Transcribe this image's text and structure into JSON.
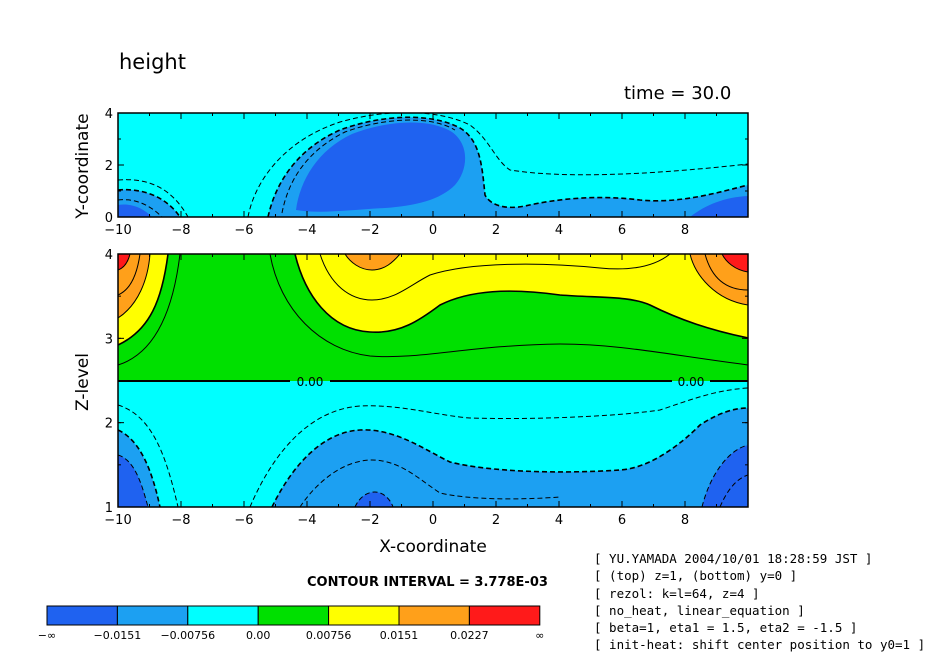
{
  "title": "height",
  "time_label": "time = 30.0",
  "contour_interval_label": "CONTOUR INTERVAL = 3.778E-03",
  "colors": {
    "c0": "#1f62f0",
    "c1": "#1ca0f2",
    "c2": "#00ffff",
    "c3": "#00e000",
    "c4": "#ffff00",
    "c5": "#ffa01a",
    "c6": "#ff1a1a"
  },
  "chart_data": [
    {
      "type": "heatmap",
      "subtype": "filled-contour",
      "title": "height",
      "xlabel": "",
      "ylabel": "Y-coordinate",
      "xlim": [
        -10,
        10
      ],
      "ylim": [
        0,
        4
      ],
      "x_ticks": [
        "-10",
        "-8",
        "-6",
        "-4",
        "-2",
        "0",
        "2",
        "4",
        "6",
        "8"
      ],
      "y_ticks": [
        "0",
        "2",
        "4"
      ],
      "field": "height at z=1",
      "features": [
        {
          "region": "central low",
          "x_range": [
            -5,
            1.3
          ],
          "y_range": [
            0,
            3.7
          ],
          "level_band": "< -0.0151",
          "center": [
            -2,
            1.4
          ]
        },
        {
          "region": "right corner low",
          "x_range": [
            8,
            10
          ],
          "y_range": [
            0,
            0.7
          ],
          "level_band": "< -0.0151"
        },
        {
          "region": "left corner low",
          "x_range": [
            -10,
            -9
          ],
          "y_range": [
            0,
            0.4
          ],
          "level_band": "< -0.0151"
        },
        {
          "region": "wavy ridge",
          "x_range": [
            1.5,
            10
          ],
          "y_range": [
            0,
            0.8
          ],
          "level_band": "-0.0151 to -0.00756"
        }
      ]
    },
    {
      "type": "heatmap",
      "subtype": "filled-contour",
      "title": "",
      "xlabel": "X-coordinate",
      "ylabel": "Z-level",
      "xlim": [
        -10,
        10
      ],
      "ylim": [
        1,
        4
      ],
      "x_ticks": [
        "-10",
        "-8",
        "-6",
        "-4",
        "-2",
        "0",
        "2",
        "4",
        "6",
        "8"
      ],
      "y_ticks": [
        "1",
        "2",
        "3",
        "4"
      ],
      "field": "height at y=0",
      "zero_contour_z": 2.5,
      "zero_contour_labels": [
        "0.00",
        "0.00"
      ],
      "features": [
        {
          "region": "upper left corner high",
          "x_range": [
            -10,
            -8
          ],
          "z_range": [
            3.0,
            4
          ],
          "level_band": "0.0151 to 0.0227"
        },
        {
          "region": "upper right corner high",
          "x_range": [
            7.5,
            10
          ],
          "z_range": [
            3.0,
            4
          ],
          "level_band": "0.0227 and above"
        },
        {
          "region": "upper central high",
          "x_range": [
            -4.5,
            7
          ],
          "z_range": [
            3.1,
            4
          ],
          "level_band": "0.00756 to 0.0151"
        },
        {
          "region": "lower left low",
          "x_range": [
            -10,
            -8
          ],
          "z_range": [
            1,
            2.4
          ],
          "level_band": "< -0.0151"
        },
        {
          "region": "lower right low",
          "x_range": [
            7,
            10
          ],
          "z_range": [
            1,
            2.4
          ],
          "level_band": "< -0.0151"
        },
        {
          "region": "lower central low",
          "x_range": [
            -5,
            7.5
          ],
          "z_range": [
            1,
            2.3
          ],
          "level_band": "-0.0151 to -0.00756"
        }
      ]
    }
  ],
  "legend": {
    "labels": [
      "-∞",
      "-0.0151",
      "-0.00756",
      "0.00",
      "0.00756",
      "0.0151",
      "0.0227",
      "∞"
    ],
    "colors": [
      "#1f62f0",
      "#1ca0f2",
      "#00ffff",
      "#00e000",
      "#ffff00",
      "#ffa01a",
      "#ff1a1a"
    ]
  },
  "info_lines": [
    "[ YU.YAMADA 2004/10/01 18:28:59 JST ]",
    "[ (top) z=1, (bottom) y=0 ]",
    "[ rezol: k=l=64, z=4 ]",
    "[ no_heat, linear_equation ]",
    "[ beta=1, eta1 = 1.5, eta2 = -1.5 ]",
    "[ init-heat: shift center position to y0=1 ]"
  ]
}
